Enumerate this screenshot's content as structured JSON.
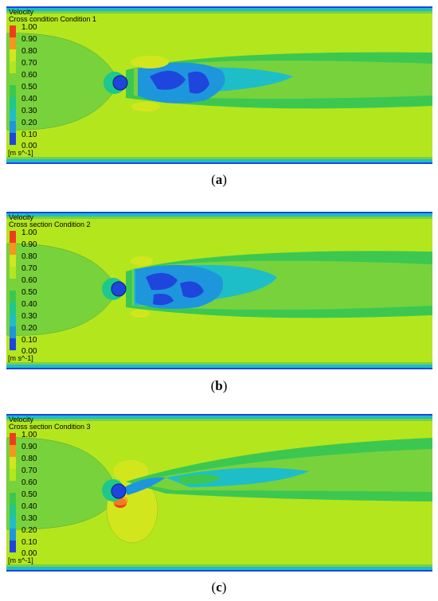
{
  "colors": {
    "level_100": "#f03c1e",
    "level_090": "#f5961e",
    "level_080": "#d2e61e",
    "level_070": "#b4e61e",
    "level_060": "#78d23c",
    "level_050": "#3cc850",
    "level_040": "#1ec88c",
    "level_030": "#1ebec8",
    "level_020": "#1e96dc",
    "level_010": "#1e46dc"
  },
  "legend": {
    "title": "Velocity",
    "levels": [
      "1.00",
      "0.90",
      "0.80",
      "0.70",
      "0.60",
      "0.50",
      "0.40",
      "0.30",
      "0.20",
      "0.10",
      "0.00"
    ],
    "unit": "[m s^-1]"
  },
  "panels": [
    {
      "subtitle": "Cross condition Condition 1",
      "letter": "a",
      "cap_open": "(",
      "cap_close": ")"
    },
    {
      "subtitle": "Cross section Condition 2",
      "letter": "b",
      "cap_open": "(",
      "cap_close": ")"
    },
    {
      "subtitle": "Cross section Condition 3",
      "letter": "c",
      "cap_open": "(",
      "cap_close": ")"
    }
  ]
}
